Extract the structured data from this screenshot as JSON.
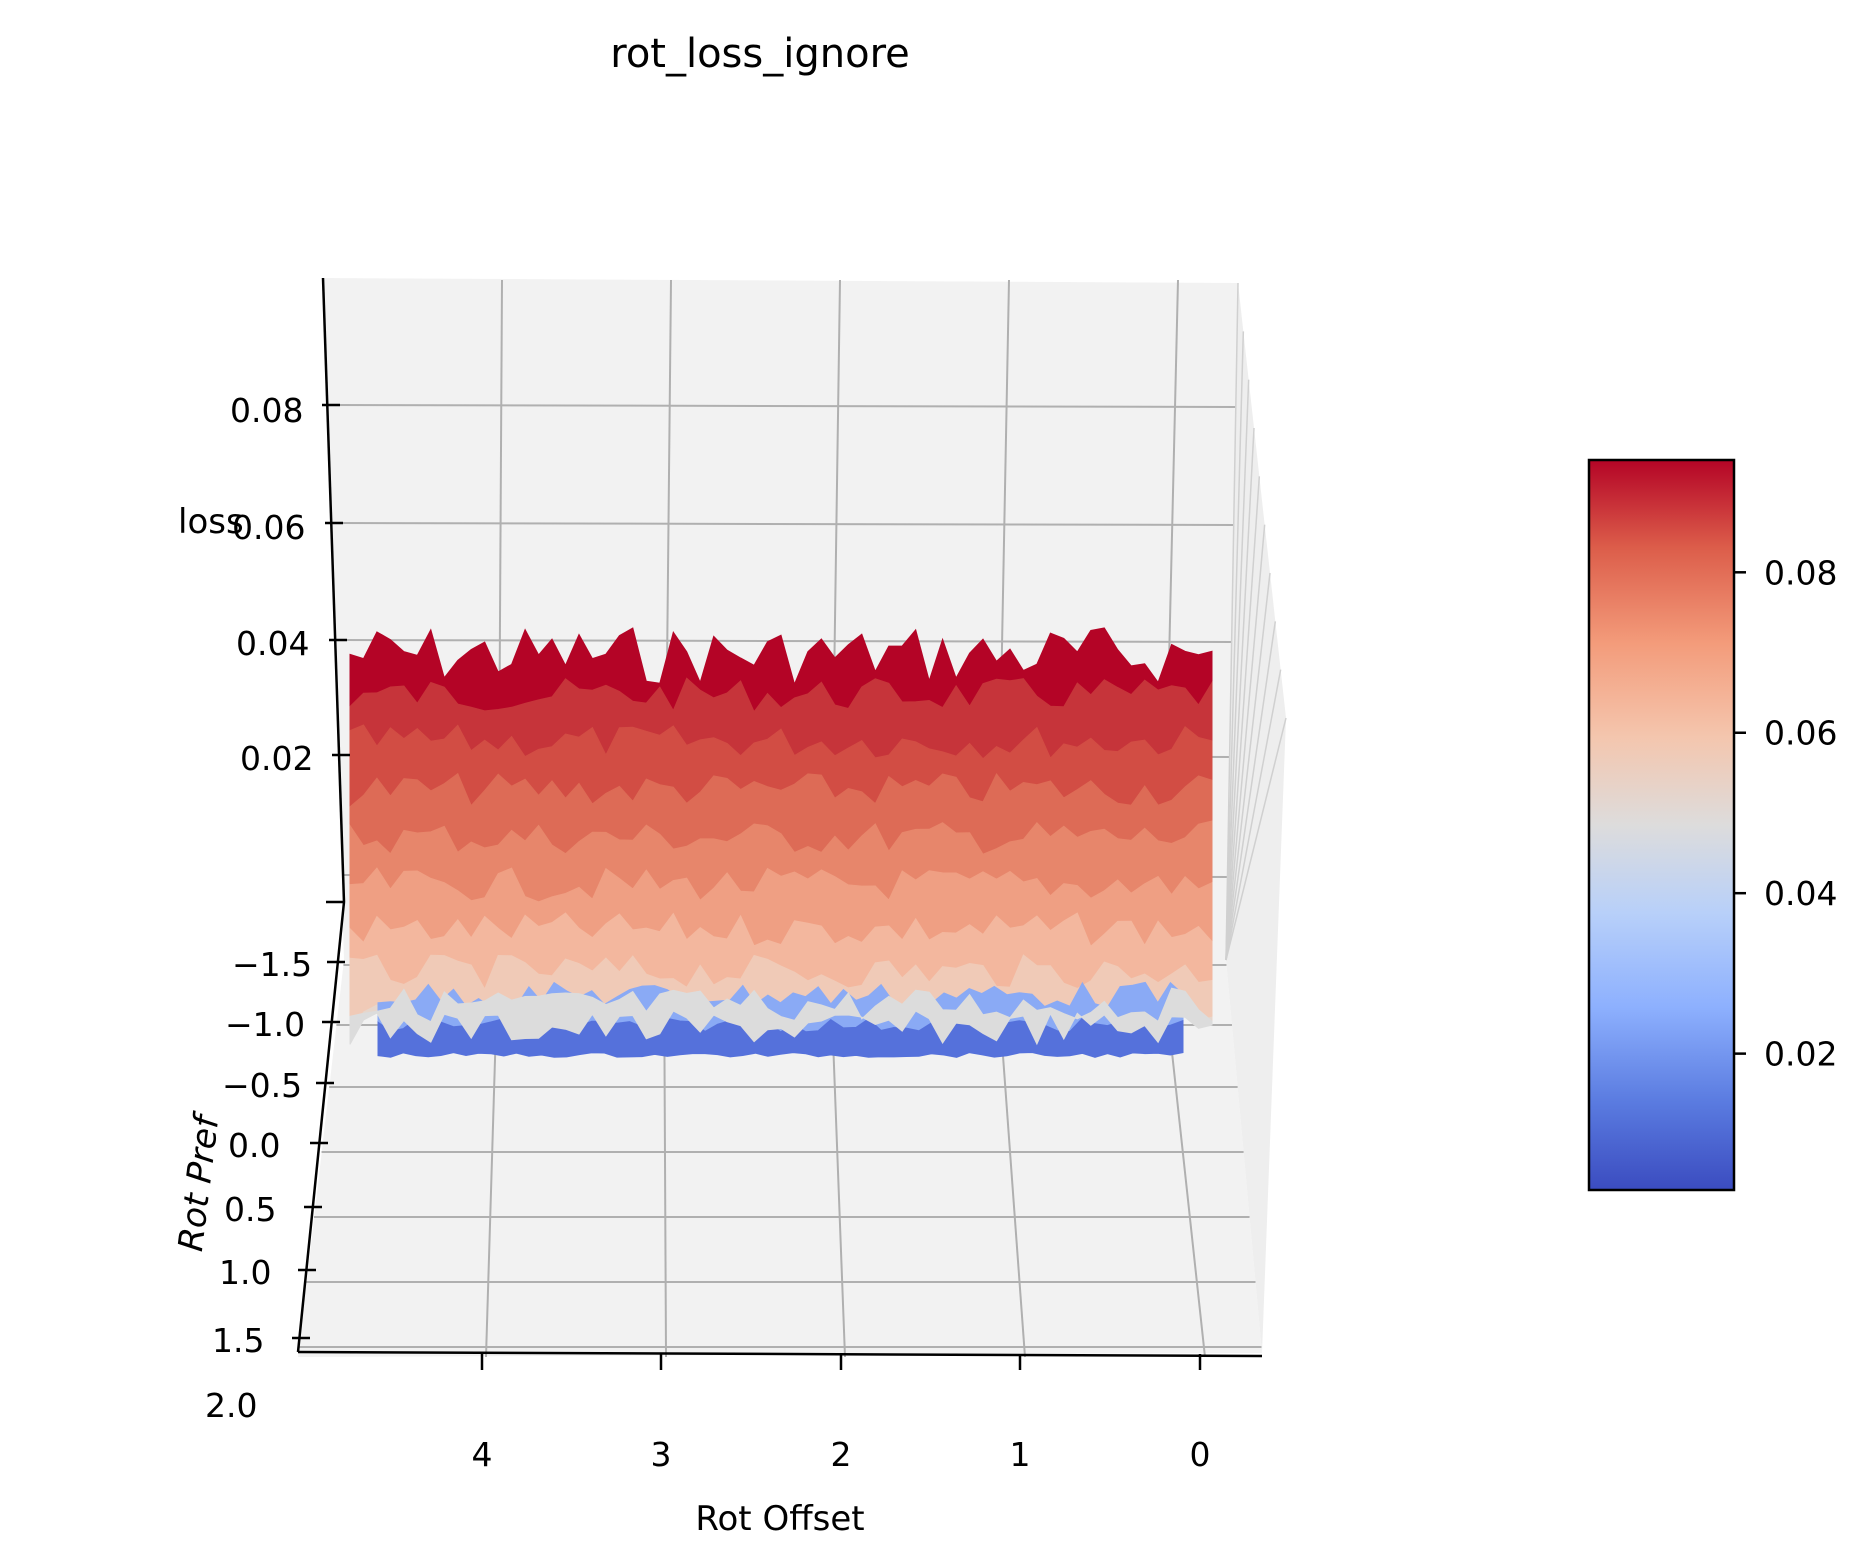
{
  "chart_data": {
    "type": "surface3d",
    "title": "rot_loss_ignore",
    "xlabel": "Rot Offset",
    "ylabel": "Rot Pref",
    "zlabel": "loss",
    "x_ticks": [
      "4",
      "3",
      "2",
      "1",
      "0"
    ],
    "y_ticks": [
      "−1.5",
      "−1.0",
      "−0.5",
      "0.0",
      "0.5",
      "1.0",
      "1.5",
      "2.0"
    ],
    "z_ticks": [
      "0.08",
      "0.06",
      "0.04",
      "0.02"
    ],
    "colorbar": {
      "colormap": "coolwarm",
      "ticks": [
        "0.08",
        "0.06",
        "0.04",
        "0.02"
      ],
      "range": [
        0.003,
        0.094
      ]
    },
    "surface": {
      "description_x_range": [
        0,
        4.8
      ],
      "y_range": [
        -1.6,
        -0.8
      ],
      "z_range": [
        0.003,
        0.094
      ],
      "trend": "loss increases with depth (Rot Pref toward -1.6), roughly constant along Rot Offset, with noise"
    },
    "grid": true,
    "colors": {
      "low": "#3b4cc0",
      "mid": "#dddcdc",
      "high": "#b40426",
      "pane": "#f2f2f2",
      "grid": "#b0b0b0"
    }
  }
}
